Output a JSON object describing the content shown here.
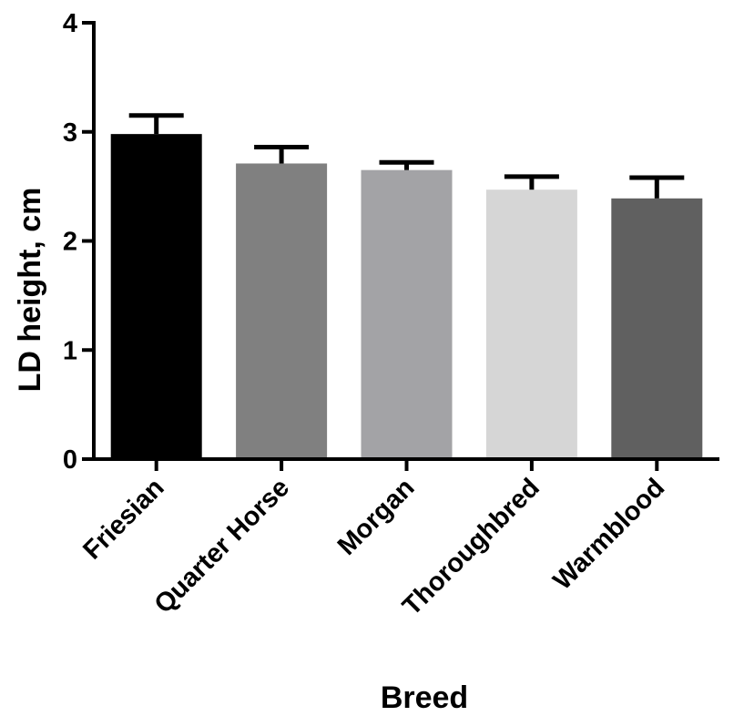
{
  "chart_data": {
    "type": "bar",
    "title": "",
    "xlabel": "Breed",
    "ylabel": "LD height, cm",
    "categories": [
      "Friesian",
      "Quarter Horse",
      "Morgan",
      "Thoroughbred",
      "Warmblood"
    ],
    "values": [
      2.98,
      2.71,
      2.65,
      2.47,
      2.39
    ],
    "error_upper": [
      0.17,
      0.15,
      0.07,
      0.12,
      0.19
    ],
    "colors": [
      "#000000",
      "#808080",
      "#a3a3a6",
      "#d6d6d6",
      "#606060"
    ],
    "ylim": [
      0,
      4
    ],
    "yticks": [
      "0",
      "1",
      "2",
      "3",
      "4"
    ],
    "grid": false,
    "legend": "none"
  }
}
